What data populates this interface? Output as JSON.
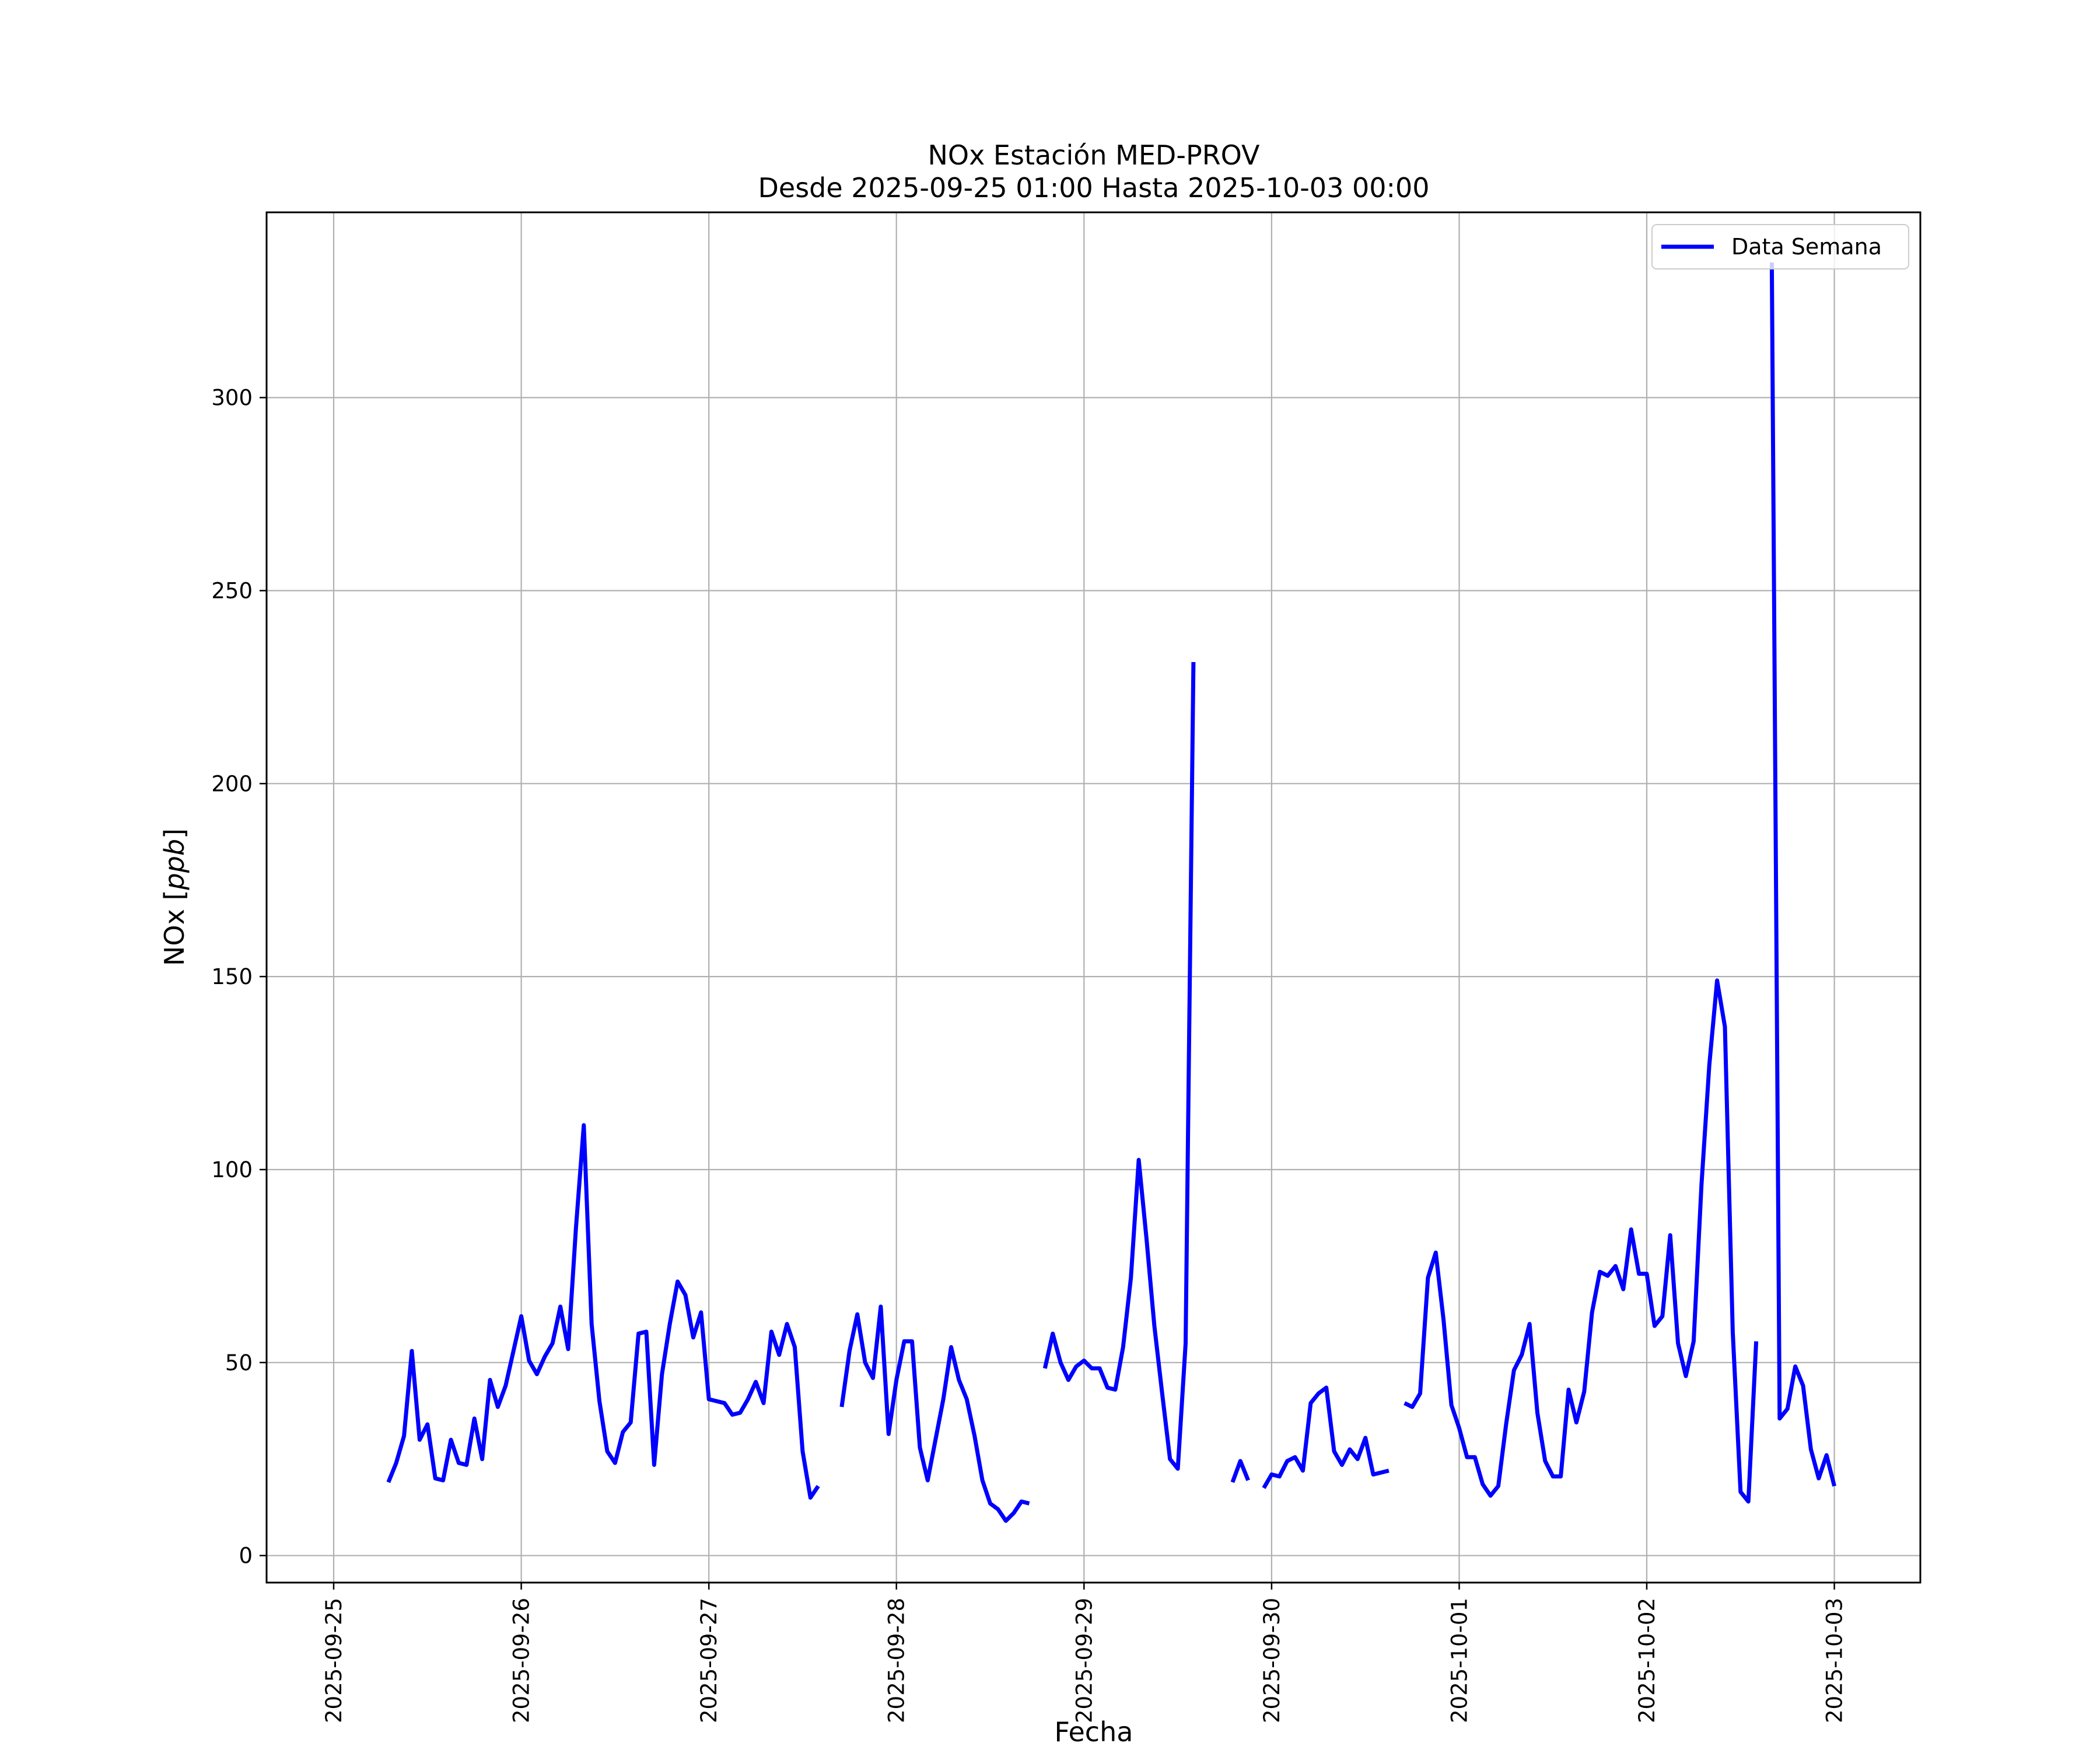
{
  "chart_data": {
    "type": "line",
    "title": "NOx Estación MED-PROV",
    "subtitle": "Desde 2025-09-25 01:00 Hasta 2025-10-03 00:00",
    "xlabel": "Fecha",
    "ylabel": "NOx [ppb]",
    "ylabel_prefix": "NOx [",
    "ylabel_unit": "ppb",
    "ylabel_suffix": "]",
    "x_ticks": [
      "2025-09-25",
      "2025-09-26",
      "2025-09-27",
      "2025-09-28",
      "2025-09-29",
      "2025-09-30",
      "2025-10-01",
      "2025-10-02",
      "2025-10-03"
    ],
    "y_ticks": [
      0,
      50,
      100,
      150,
      200,
      250,
      300
    ],
    "xlim": [
      "2025-09-24 15:25",
      "2025-10-03 11:00"
    ],
    "ylim": [
      -7,
      348
    ],
    "grid": true,
    "legend_position": "upper right",
    "series": [
      {
        "name": "Data Semana",
        "color": "#0000ff",
        "segments": [
          [
            [
              "2025-09-25 07:00",
              19
            ],
            [
              "2025-09-25 08:00",
              24
            ],
            [
              "2025-09-25 09:00",
              31
            ],
            [
              "2025-09-25 10:00",
              53
            ],
            [
              "2025-09-25 11:00",
              30
            ],
            [
              "2025-09-25 12:00",
              34
            ],
            [
              "2025-09-25 13:00",
              20
            ],
            [
              "2025-09-25 14:00",
              19.5
            ],
            [
              "2025-09-25 15:00",
              30
            ],
            [
              "2025-09-25 16:00",
              24
            ],
            [
              "2025-09-25 17:00",
              23.5
            ],
            [
              "2025-09-25 18:00",
              35.5
            ],
            [
              "2025-09-25 19:00",
              25
            ],
            [
              "2025-09-25 20:00",
              45.5
            ],
            [
              "2025-09-25 21:00",
              38.5
            ],
            [
              "2025-09-25 22:00",
              44
            ],
            [
              "2025-09-25 23:00",
              53
            ],
            [
              "2025-09-26 00:00",
              62
            ],
            [
              "2025-09-26 01:00",
              50.5
            ],
            [
              "2025-09-26 02:00",
              47
            ],
            [
              "2025-09-26 03:00",
              51.5
            ],
            [
              "2025-09-26 04:00",
              55
            ],
            [
              "2025-09-26 05:00",
              64.5
            ],
            [
              "2025-09-26 06:00",
              53.5
            ],
            [
              "2025-09-26 07:00",
              85
            ],
            [
              "2025-09-26 08:00",
              111.5
            ],
            [
              "2025-09-26 09:00",
              60
            ],
            [
              "2025-09-26 10:00",
              40
            ],
            [
              "2025-09-26 11:00",
              27
            ],
            [
              "2025-09-26 12:00",
              24
            ],
            [
              "2025-09-26 13:00",
              32
            ],
            [
              "2025-09-26 14:00",
              34.5
            ],
            [
              "2025-09-26 15:00",
              57.5
            ],
            [
              "2025-09-26 16:00",
              58
            ],
            [
              "2025-09-26 17:00",
              23.5
            ],
            [
              "2025-09-26 18:00",
              47
            ],
            [
              "2025-09-26 19:00",
              60
            ],
            [
              "2025-09-26 20:00",
              71
            ],
            [
              "2025-09-26 21:00",
              67.5
            ],
            [
              "2025-09-26 22:00",
              56.5
            ],
            [
              "2025-09-26 23:00",
              63
            ],
            [
              "2025-09-27 00:00",
              40.5
            ],
            [
              "2025-09-27 01:00",
              40
            ],
            [
              "2025-09-27 02:00",
              39.5
            ],
            [
              "2025-09-27 03:00",
              36.5
            ],
            [
              "2025-09-27 04:00",
              37
            ],
            [
              "2025-09-27 05:00",
              40.5
            ],
            [
              "2025-09-27 06:00",
              45
            ],
            [
              "2025-09-27 07:00",
              39.5
            ],
            [
              "2025-09-27 08:00",
              58
            ],
            [
              "2025-09-27 09:00",
              52
            ],
            [
              "2025-09-27 10:00",
              60
            ],
            [
              "2025-09-27 11:00",
              54
            ],
            [
              "2025-09-27 12:00",
              27
            ],
            [
              "2025-09-27 13:00",
              15
            ],
            [
              "2025-09-27 14:00",
              18
            ]
          ],
          [
            [
              "2025-09-27 17:00",
              38.5
            ],
            [
              "2025-09-27 18:00",
              53
            ],
            [
              "2025-09-27 19:00",
              62.5
            ],
            [
              "2025-09-27 20:00",
              50
            ],
            [
              "2025-09-27 21:00",
              46
            ],
            [
              "2025-09-27 22:00",
              64.5
            ],
            [
              "2025-09-27 23:00",
              31.5
            ],
            [
              "2025-09-28 00:00",
              45.5
            ],
            [
              "2025-09-28 01:00",
              55.5
            ],
            [
              "2025-09-28 02:00",
              55.5
            ],
            [
              "2025-09-28 03:00",
              28
            ],
            [
              "2025-09-28 04:00",
              19.5
            ],
            [
              "2025-09-28 05:00",
              30
            ],
            [
              "2025-09-28 06:00",
              40.5
            ],
            [
              "2025-09-28 07:00",
              54
            ],
            [
              "2025-09-28 08:00",
              45.5
            ],
            [
              "2025-09-28 09:00",
              40.5
            ],
            [
              "2025-09-28 10:00",
              31
            ],
            [
              "2025-09-28 11:00",
              19.5
            ],
            [
              "2025-09-28 12:00",
              13.5
            ],
            [
              "2025-09-28 13:00",
              12
            ],
            [
              "2025-09-28 14:00",
              9
            ],
            [
              "2025-09-28 15:00",
              11
            ],
            [
              "2025-09-28 16:00",
              14
            ],
            [
              "2025-09-28 17:00",
              13.5
            ]
          ],
          [
            [
              "2025-09-28 19:00",
              48.5
            ],
            [
              "2025-09-28 20:00",
              57.5
            ],
            [
              "2025-09-28 21:00",
              50
            ],
            [
              "2025-09-28 22:00",
              45.5
            ],
            [
              "2025-09-28 23:00",
              49
            ],
            [
              "2025-09-29 00:00",
              50.5
            ],
            [
              "2025-09-29 01:00",
              48.5
            ],
            [
              "2025-09-29 02:00",
              48.5
            ],
            [
              "2025-09-29 03:00",
              43.5
            ],
            [
              "2025-09-29 04:00",
              43
            ],
            [
              "2025-09-29 05:00",
              54
            ],
            [
              "2025-09-29 06:00",
              72
            ],
            [
              "2025-09-29 07:00",
              102.5
            ],
            [
              "2025-09-29 08:00",
              82
            ],
            [
              "2025-09-29 09:00",
              59.5
            ],
            [
              "2025-09-29 10:00",
              42
            ],
            [
              "2025-09-29 11:00",
              25
            ],
            [
              "2025-09-29 12:00",
              22.5
            ],
            [
              "2025-09-29 13:00",
              55
            ],
            [
              "2025-09-29 14:00",
              231.5
            ]
          ],
          [
            [
              "2025-09-29 19:00",
              19
            ],
            [
              "2025-09-29 20:00",
              24.5
            ],
            [
              "2025-09-29 21:00",
              19.5
            ]
          ],
          [
            [
              "2025-09-29 23:00",
              17.5
            ],
            [
              "2025-09-30 00:00",
              21
            ],
            [
              "2025-09-30 01:00",
              20.5
            ],
            [
              "2025-09-30 02:00",
              24.5
            ],
            [
              "2025-09-30 03:00",
              25.5
            ],
            [
              "2025-09-30 04:00",
              22
            ],
            [
              "2025-09-30 05:00",
              39.5
            ],
            [
              "2025-09-30 06:00",
              42
            ],
            [
              "2025-09-30 07:00",
              43.5
            ],
            [
              "2025-09-30 08:00",
              27
            ],
            [
              "2025-09-30 09:00",
              23.5
            ],
            [
              "2025-09-30 10:00",
              27.5
            ],
            [
              "2025-09-30 11:00",
              25
            ],
            [
              "2025-09-30 12:00",
              30.5
            ],
            [
              "2025-09-30 13:00",
              21
            ],
            [
              "2025-09-30 14:00",
              21.5
            ],
            [
              "2025-09-30 15:00",
              22
            ]
          ],
          [
            [
              "2025-09-30 17:00",
              39.5
            ],
            [
              "2025-09-30 18:00",
              38.5
            ],
            [
              "2025-09-30 19:00",
              42
            ],
            [
              "2025-09-30 20:00",
              72
            ],
            [
              "2025-09-30 21:00",
              78.5
            ],
            [
              "2025-09-30 22:00",
              61
            ],
            [
              "2025-09-30 23:00",
              39
            ],
            [
              "2025-10-01 00:00",
              33
            ],
            [
              "2025-10-01 01:00",
              25.5
            ],
            [
              "2025-10-01 02:00",
              25.5
            ],
            [
              "2025-10-01 03:00",
              18.5
            ],
            [
              "2025-10-01 04:00",
              15.5
            ],
            [
              "2025-10-01 05:00",
              18
            ],
            [
              "2025-10-01 06:00",
              34
            ],
            [
              "2025-10-01 07:00",
              48
            ],
            [
              "2025-10-01 08:00",
              52
            ],
            [
              "2025-10-01 09:00",
              60
            ],
            [
              "2025-10-01 10:00",
              37
            ],
            [
              "2025-10-01 11:00",
              24.5
            ],
            [
              "2025-10-01 12:00",
              20.5
            ],
            [
              "2025-10-01 13:00",
              20.5
            ],
            [
              "2025-10-01 14:00",
              43
            ],
            [
              "2025-10-01 15:00",
              34.5
            ],
            [
              "2025-10-01 16:00",
              42.5
            ],
            [
              "2025-10-01 17:00",
              63
            ],
            [
              "2025-10-01 18:00",
              73.5
            ],
            [
              "2025-10-01 19:00",
              72.5
            ],
            [
              "2025-10-01 20:00",
              75
            ],
            [
              "2025-10-01 21:00",
              69
            ],
            [
              "2025-10-01 22:00",
              84.5
            ],
            [
              "2025-10-01 23:00",
              73
            ],
            [
              "2025-10-02 00:00",
              73
            ],
            [
              "2025-10-02 01:00",
              59.5
            ],
            [
              "2025-10-02 02:00",
              62
            ],
            [
              "2025-10-02 03:00",
              83
            ],
            [
              "2025-10-02 04:00",
              55
            ],
            [
              "2025-10-02 05:00",
              46.5
            ],
            [
              "2025-10-02 06:00",
              55.5
            ],
            [
              "2025-10-02 07:00",
              96
            ],
            [
              "2025-10-02 08:00",
              127
            ],
            [
              "2025-10-02 09:00",
              149
            ],
            [
              "2025-10-02 10:00",
              137
            ],
            [
              "2025-10-02 11:00",
              58
            ],
            [
              "2025-10-02 12:00",
              16.5
            ],
            [
              "2025-10-02 13:00",
              14
            ],
            [
              "2025-10-02 14:00",
              55.5
            ]
          ],
          [
            [
              "2025-10-02 16:00",
              335
            ],
            [
              "2025-10-02 17:00",
              35.5
            ],
            [
              "2025-10-02 18:00",
              38
            ],
            [
              "2025-10-02 19:00",
              49
            ],
            [
              "2025-10-02 20:00",
              44
            ],
            [
              "2025-10-02 21:00",
              27.5
            ],
            [
              "2025-10-02 22:00",
              20
            ],
            [
              "2025-10-02 23:00",
              26
            ],
            [
              "2025-10-03 00:00",
              18
            ]
          ]
        ]
      }
    ]
  }
}
